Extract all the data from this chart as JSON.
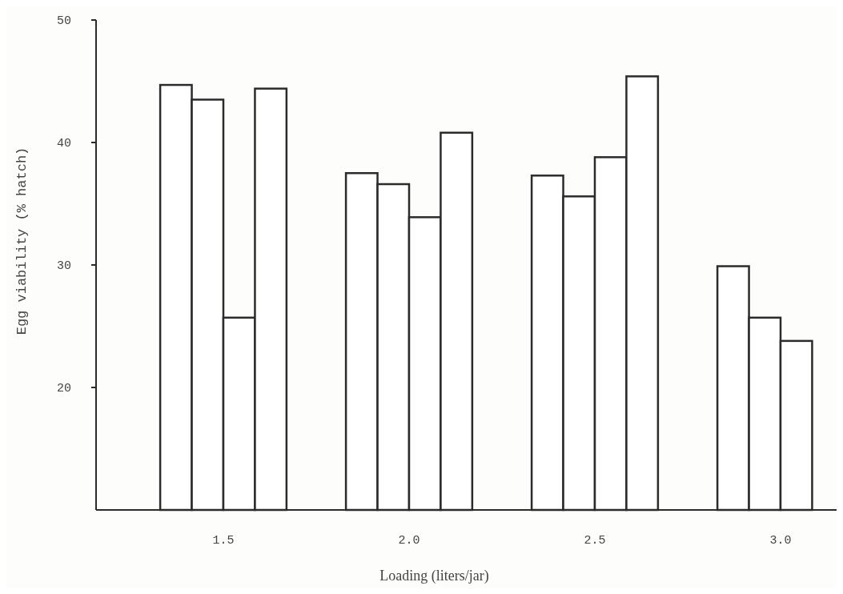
{
  "chart_data": {
    "type": "bar",
    "xlabel": "Loading (liters/jar)",
    "ylabel": "Egg viability (% hatch)",
    "categories": [
      "1.5",
      "2.0",
      "2.5",
      "3.0"
    ],
    "series": [
      {
        "color": "#2b2b2b",
        "values": [
          44.7,
          37.5,
          37.3,
          29.9
        ]
      },
      {
        "color": "#2b2b2b",
        "values": [
          43.5,
          36.6,
          35.6,
          25.7
        ]
      },
      {
        "color": "#2b2b2b",
        "values": [
          25.7,
          33.9,
          38.8,
          23.8
        ]
      },
      {
        "color": "#2b2b2b",
        "values": [
          44.4,
          40.8,
          45.4,
          null
        ]
      }
    ],
    "ylim": [
      10,
      50
    ],
    "yticks": [
      20,
      30,
      40,
      50
    ]
  }
}
